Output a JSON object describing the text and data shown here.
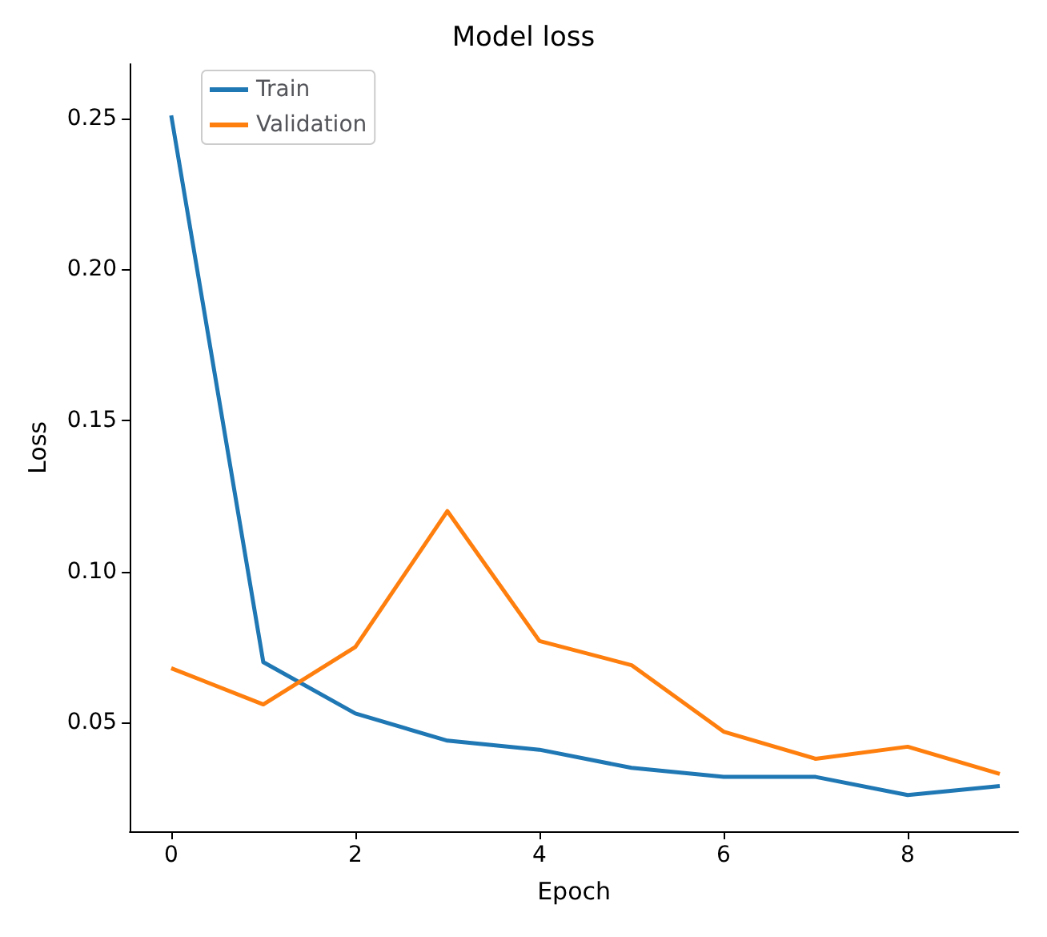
{
  "chart_data": {
    "type": "line",
    "title": "Model loss",
    "xlabel": "Epoch",
    "ylabel": "Loss",
    "x": [
      0,
      1,
      2,
      3,
      4,
      5,
      6,
      7,
      8,
      9
    ],
    "series": [
      {
        "name": "Train",
        "color": "#1f77b4",
        "values": [
          0.251,
          0.07,
          0.053,
          0.044,
          0.041,
          0.035,
          0.032,
          0.032,
          0.026,
          0.029
        ]
      },
      {
        "name": "Validation",
        "color": "#ff7f0e",
        "values": [
          0.068,
          0.056,
          0.075,
          0.12,
          0.077,
          0.069,
          0.047,
          0.038,
          0.042,
          0.033
        ]
      }
    ],
    "xlim": [
      -0.45,
      9.2
    ],
    "xticks": [
      0,
      2,
      4,
      6,
      8
    ],
    "ylim": [
      0.014,
      0.268
    ],
    "yticks": [
      {
        "value": 0.05,
        "label": "0.05"
      },
      {
        "value": 0.1,
        "label": "0.10"
      },
      {
        "value": 0.15,
        "label": "0.15"
      },
      {
        "value": 0.2,
        "label": "0.20"
      },
      {
        "value": 0.25,
        "label": "0.25"
      }
    ],
    "grid": false,
    "legend": "top left",
    "marker": "none",
    "line_style": "solid"
  }
}
